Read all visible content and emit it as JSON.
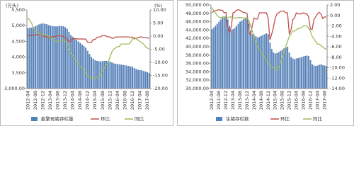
{
  "chart_data": [
    {
      "type": "combo",
      "y_label": "(万头)",
      "y2_label": "(%)",
      "categories": [
        "2012-04",
        null,
        null,
        null,
        "2012-08",
        null,
        null,
        null,
        "2012-12",
        null,
        null,
        null,
        "2013-04",
        null,
        null,
        null,
        "2013-08",
        null,
        null,
        null,
        "2013-12",
        null,
        null,
        null,
        "2014-04",
        null,
        null,
        null,
        "2014-08",
        null,
        null,
        null,
        "2014-12",
        null,
        null,
        null,
        "2015-04",
        null,
        null,
        null,
        "2015-08",
        null,
        null,
        null,
        "2015-12",
        null,
        null,
        null,
        "2016-04",
        null,
        null,
        null,
        "2016-08",
        null,
        null,
        null,
        "2016-12",
        null,
        null,
        null,
        "2017-04",
        null,
        null,
        null,
        "2017-08",
        null
      ],
      "ylim": [
        3000,
        5500
      ],
      "yticks": [
        {
          "value": 3000,
          "label": "3,000.00"
        },
        {
          "value": 3500,
          "label": "3,500"
        },
        {
          "value": 4000,
          "label": "4,000"
        },
        {
          "value": 4500,
          "label": "4,500"
        },
        {
          "value": 5000,
          "label": "5,000"
        },
        {
          "value": 5500,
          "label": "5,500"
        }
      ],
      "y2lim": [
        -20,
        10
      ],
      "y2ticks": [
        {
          "value": -20,
          "label": "-20.00"
        },
        {
          "value": -15,
          "label": "-15.00"
        },
        {
          "value": -10,
          "label": "-10.00"
        },
        {
          "value": -5,
          "label": "-5.00"
        },
        {
          "value": 0,
          "label": "0.00"
        },
        {
          "value": 5,
          "label": "5.00"
        },
        {
          "value": 10,
          "label": "10.00"
        }
      ],
      "series": [
        {
          "name": "能繁母猪存栏量",
          "type": "bar",
          "color": "#4f81bd",
          "values": [
            4920,
            4930,
            4940,
            4960,
            4980,
            5010,
            5040,
            5060,
            5070,
            5060,
            5050,
            5020,
            5000,
            4990,
            4980,
            4975,
            4980,
            4990,
            4990,
            4980,
            4950,
            4900,
            4800,
            4700,
            4650,
            4600,
            4550,
            4500,
            4450,
            4400,
            4350,
            4300,
            4200,
            4100,
            4000,
            3950,
            3900,
            3880,
            3870,
            3860,
            3870,
            3880,
            3880,
            3870,
            3860,
            3830,
            3800,
            3790,
            3780,
            3770,
            3760,
            3750,
            3740,
            3730,
            3720,
            3700,
            3690,
            3650,
            3620,
            3600,
            3590,
            3580,
            3560,
            3540,
            3520,
            3490
          ]
        },
        {
          "name": "环比",
          "type": "line",
          "axis": "y2",
          "color": "#c0504d",
          "values": [
            0.5,
            0.2,
            0.2,
            0.4,
            0.4,
            0.6,
            0.6,
            0.4,
            0.2,
            -0.2,
            -0.2,
            -0.6,
            -0.4,
            -0.2,
            -0.2,
            -0.1,
            0.1,
            0.2,
            0,
            -0.2,
            -0.6,
            -1,
            -2,
            -2,
            -1,
            -1,
            -1,
            -1.1,
            -1.1,
            -1.1,
            -1.1,
            -1.1,
            -2.3,
            -2.4,
            -2.4,
            -1.3,
            -1.3,
            -0.5,
            -0.3,
            -0.3,
            0.3,
            0.3,
            0,
            -0.3,
            -0.3,
            -0.8,
            -0.8,
            -0.3,
            -0.3,
            -0.3,
            -0.3,
            -0.3,
            -0.3,
            -0.3,
            -0.3,
            -0.5,
            -0.3,
            -1.1,
            -0.8,
            -0.6,
            -0.3,
            -0.3,
            -0.6,
            -0.6,
            -0.6,
            -0.9
          ]
        },
        {
          "name": "同比",
          "type": "line",
          "axis": "y2",
          "color": "#9bbb59",
          "values": [
            7,
            6,
            5,
            3,
            2,
            1.5,
            1,
            0.5,
            0.5,
            0.5,
            0.3,
            0,
            -0.5,
            -1,
            -1.5,
            -2,
            -2,
            -1.8,
            -1.6,
            -1.5,
            -2,
            -3,
            -5,
            -6.5,
            -7.5,
            -8.5,
            -9.5,
            -10.5,
            -11.5,
            -12,
            -13,
            -14,
            -15,
            -15.5,
            -16,
            -16,
            -16,
            -15.8,
            -15.5,
            -15,
            -13,
            -12,
            -11,
            -10,
            -8,
            -6,
            -5,
            -4.5,
            -4,
            -4,
            -3,
            -3,
            -3,
            -3,
            -3,
            -2.5,
            -1,
            -0.5,
            -1,
            -1.5,
            -2,
            -2.5,
            -3,
            -4,
            -4.5,
            -5
          ]
        }
      ]
    },
    {
      "type": "combo",
      "categories": [
        "2012-04",
        null,
        null,
        null,
        "2012-08",
        null,
        null,
        null,
        "2012-12",
        null,
        null,
        null,
        "2013-04",
        null,
        null,
        null,
        "2013-08",
        null,
        null,
        null,
        "2013-12",
        null,
        null,
        null,
        "2014-04",
        null,
        null,
        null,
        "2014-08",
        null,
        null,
        null,
        "2014-12",
        null,
        null,
        null,
        "2015-04",
        null,
        null,
        null,
        "2015-08",
        null,
        null,
        null,
        "2015-12",
        null,
        null,
        null,
        "2016-04",
        null,
        null,
        null,
        "2016-08",
        null,
        null,
        null,
        "2016-12",
        null,
        null,
        null,
        "2017-04",
        null,
        null,
        null,
        "2017-08",
        null
      ],
      "ylim": [
        30000,
        50000
      ],
      "yticks": [
        {
          "value": 30000,
          "label": "30,000.00"
        },
        {
          "value": 32000,
          "label": "32,000.00"
        },
        {
          "value": 34000,
          "label": "34,000.00"
        },
        {
          "value": 36000,
          "label": "36,000.00"
        },
        {
          "value": 38000,
          "label": "38,000.00"
        },
        {
          "value": 40000,
          "label": "40,000.00"
        },
        {
          "value": 42000,
          "label": "42,000.00"
        },
        {
          "value": 44000,
          "label": "44,000.00"
        },
        {
          "value": 46000,
          "label": "46,000.00"
        },
        {
          "value": 48000,
          "label": "48,000.00"
        },
        {
          "value": 50000,
          "label": "50,000.00"
        }
      ],
      "y2lim": [
        -14,
        2
      ],
      "y2ticks": [
        {
          "value": -14,
          "label": "-14.00"
        },
        {
          "value": -12,
          "label": "-12.00"
        },
        {
          "value": -10,
          "label": "-10.00"
        },
        {
          "value": -8,
          "label": "-8.00"
        },
        {
          "value": -6,
          "label": "-6.00"
        },
        {
          "value": -4,
          "label": "-4.00"
        },
        {
          "value": -2,
          "label": "-2.00"
        },
        {
          "value": 0,
          "label": "0.00"
        },
        {
          "value": 2,
          "label": "2.00"
        }
      ],
      "series": [
        {
          "name": "生猪存栏数",
          "type": "bar",
          "color": "#4f81bd",
          "values": [
            44200,
            44600,
            45000,
            45500,
            46000,
            46500,
            47000,
            47200,
            47500,
            46500,
            45000,
            44000,
            44200,
            44500,
            45000,
            45500,
            46000,
            46300,
            46600,
            46800,
            47000,
            45500,
            43800,
            43000,
            42800,
            42500,
            42200,
            42400,
            42600,
            42800,
            43000,
            43200,
            43000,
            41000,
            39500,
            38600,
            38400,
            38500,
            38700,
            39000,
            39300,
            39600,
            39800,
            40000,
            38600,
            37500,
            37200,
            37000,
            37200,
            37300,
            37400,
            37500,
            37700,
            37800,
            37900,
            37800,
            36800,
            35800,
            35500,
            35400,
            35500,
            35700,
            35800,
            35600,
            35500,
            35400
          ]
        },
        {
          "name": "环比",
          "type": "line",
          "axis": "y2",
          "color": "#c0504d",
          "values": [
            0.5,
            0.8,
            0.9,
            1.0,
            1.1,
            1.0,
            1.0,
            0.5,
            0.6,
            -2.2,
            -3.3,
            -2.3,
            0.5,
            0.6,
            1.0,
            1.1,
            1.0,
            0.7,
            0.6,
            0.5,
            0.4,
            -3.2,
            -3.7,
            -1.9,
            -0.5,
            -0.7,
            -0.7,
            0.5,
            0.5,
            0.5,
            0.5,
            0.5,
            -0.5,
            -4.7,
            -3.6,
            -2.3,
            -0.5,
            0.3,
            0.5,
            0.8,
            0.8,
            0.8,
            0.5,
            0.5,
            -3.5,
            -2.8,
            -0.8,
            -0.5,
            0.5,
            0.3,
            0.3,
            0.3,
            0.5,
            0.3,
            0.3,
            -0.3,
            -2.6,
            -2.7,
            -0.8,
            -0.3,
            0.3,
            0.6,
            0.3,
            -0.6,
            -0.3,
            -0.3
          ]
        },
        {
          "name": "同比",
          "type": "line",
          "axis": "y2",
          "color": "#9bbb59",
          "values": [
            1.5,
            1,
            0.5,
            0,
            -0.3,
            -0.5,
            -0.3,
            -0.3,
            -0.5,
            -0.5,
            -0.3,
            -0.3,
            -0.5,
            -0.5,
            -0.5,
            -0.4,
            -0.4,
            -0.4,
            -0.5,
            -0.5,
            -0.5,
            -1,
            -2,
            -3,
            -4,
            -5,
            -6,
            -6.5,
            -7,
            -7.5,
            -8,
            -8.5,
            -9,
            -9.5,
            -10,
            -10,
            -10,
            -10.5,
            -10,
            -9,
            -8,
            -7,
            -6,
            -5,
            -4,
            -3.5,
            -3,
            -3,
            -2.8,
            -2.5,
            -2.5,
            -2.3,
            -2,
            -2,
            -2,
            -2.5,
            -3,
            -4,
            -4.5,
            -5,
            -5.5,
            -5.5,
            -5.8,
            -6,
            -6.3,
            -6.5
          ]
        }
      ]
    }
  ]
}
